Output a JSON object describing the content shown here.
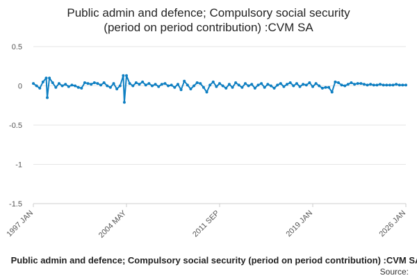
{
  "chart_data": {
    "type": "line",
    "title_lines": [
      "Public admin and defence; Compulsory social security",
      "(period on period contribution) :CVM SA"
    ],
    "xlabel": "",
    "ylabel": "",
    "x_ticks": [
      "1997 JAN",
      "2004 MAY",
      "2011 SEP",
      "2019 JAN",
      "2026 JAN"
    ],
    "x_range": [
      "1997-01",
      "2026-01"
    ],
    "y_ticks": [
      "0.5",
      "0",
      "-0.5",
      "-1",
      "-1.5"
    ],
    "ylim": [
      -1.5,
      0.5
    ],
    "grid": "horizontal",
    "legend_position": "bottom",
    "series": [
      {
        "name": "Public admin and defence; Compulsory social security (period on period contribution) :CVM SA",
        "color": "#0e7fc2",
        "points": [
          [
            "1997-01",
            0.03
          ],
          [
            "1997-04",
            0.0
          ],
          [
            "1997-07",
            -0.03
          ],
          [
            "1997-10",
            0.05
          ],
          [
            "1998-01",
            0.1
          ],
          [
            "1998-02",
            -0.15
          ],
          [
            "1998-04",
            0.1
          ],
          [
            "1998-07",
            0.04
          ],
          [
            "1998-10",
            -0.02
          ],
          [
            "1999-01",
            0.03
          ],
          [
            "1999-04",
            0.0
          ],
          [
            "1999-07",
            0.02
          ],
          [
            "1999-10",
            -0.01
          ],
          [
            "2000-01",
            0.01
          ],
          [
            "2000-04",
            0.0
          ],
          [
            "2000-07",
            -0.02
          ],
          [
            "2000-10",
            -0.03
          ],
          [
            "2001-01",
            0.04
          ],
          [
            "2001-04",
            0.03
          ],
          [
            "2001-07",
            0.02
          ],
          [
            "2001-10",
            0.04
          ],
          [
            "2002-01",
            0.03
          ],
          [
            "2002-04",
            0.01
          ],
          [
            "2002-07",
            0.04
          ],
          [
            "2002-10",
            0.0
          ],
          [
            "2003-01",
            -0.02
          ],
          [
            "2003-04",
            0.03
          ],
          [
            "2003-07",
            -0.04
          ],
          [
            "2003-10",
            0.0
          ],
          [
            "2004-01",
            0.13
          ],
          [
            "2004-02",
            -0.21
          ],
          [
            "2004-04",
            0.13
          ],
          [
            "2004-07",
            0.03
          ],
          [
            "2004-10",
            0.0
          ],
          [
            "2005-01",
            0.04
          ],
          [
            "2005-04",
            0.02
          ],
          [
            "2005-07",
            0.05
          ],
          [
            "2005-10",
            0.01
          ],
          [
            "2006-01",
            0.03
          ],
          [
            "2006-04",
            0.0
          ],
          [
            "2006-07",
            0.02
          ],
          [
            "2006-10",
            -0.01
          ],
          [
            "2007-01",
            0.02
          ],
          [
            "2007-04",
            0.03
          ],
          [
            "2007-07",
            0.0
          ],
          [
            "2007-10",
            0.01
          ],
          [
            "2008-01",
            -0.02
          ],
          [
            "2008-04",
            0.02
          ],
          [
            "2008-07",
            -0.05
          ],
          [
            "2008-10",
            0.06
          ],
          [
            "2009-01",
            0.01
          ],
          [
            "2009-04",
            -0.04
          ],
          [
            "2009-07",
            0.0
          ],
          [
            "2009-10",
            0.04
          ],
          [
            "2010-01",
            0.03
          ],
          [
            "2010-04",
            -0.02
          ],
          [
            "2010-07",
            -0.08
          ],
          [
            "2010-10",
            0.01
          ],
          [
            "2011-01",
            0.05
          ],
          [
            "2011-04",
            -0.01
          ],
          [
            "2011-07",
            0.03
          ],
          [
            "2011-10",
            0.0
          ],
          [
            "2012-01",
            -0.03
          ],
          [
            "2012-04",
            0.02
          ],
          [
            "2012-07",
            -0.02
          ],
          [
            "2012-10",
            0.04
          ],
          [
            "2013-01",
            0.01
          ],
          [
            "2013-04",
            -0.02
          ],
          [
            "2013-07",
            0.03
          ],
          [
            "2013-10",
            0.0
          ],
          [
            "2014-01",
            0.02
          ],
          [
            "2014-04",
            -0.03
          ],
          [
            "2014-07",
            0.01
          ],
          [
            "2014-10",
            0.03
          ],
          [
            "2015-01",
            -0.02
          ],
          [
            "2015-04",
            0.02
          ],
          [
            "2015-07",
            0.0
          ],
          [
            "2015-10",
            -0.03
          ],
          [
            "2016-01",
            0.01
          ],
          [
            "2016-04",
            0.03
          ],
          [
            "2016-07",
            -0.01
          ],
          [
            "2016-10",
            0.02
          ],
          [
            "2017-01",
            0.04
          ],
          [
            "2017-04",
            0.0
          ],
          [
            "2017-07",
            0.03
          ],
          [
            "2017-10",
            -0.01
          ],
          [
            "2018-01",
            0.02
          ],
          [
            "2018-04",
            0.01
          ],
          [
            "2018-07",
            0.04
          ],
          [
            "2018-10",
            -0.01
          ],
          [
            "2019-01",
            0.03
          ],
          [
            "2019-04",
            0.0
          ],
          [
            "2019-07",
            -0.03
          ],
          [
            "2019-10",
            -0.02
          ],
          [
            "2020-01",
            -0.02
          ],
          [
            "2020-04",
            -0.08
          ],
          [
            "2020-07",
            0.05
          ],
          [
            "2020-10",
            0.04
          ],
          [
            "2021-01",
            0.01
          ],
          [
            "2021-04",
            0.0
          ],
          [
            "2021-07",
            0.02
          ],
          [
            "2021-10",
            0.04
          ],
          [
            "2022-01",
            0.02
          ],
          [
            "2022-04",
            0.03
          ],
          [
            "2022-07",
            0.03
          ],
          [
            "2022-10",
            0.02
          ],
          [
            "2023-01",
            0.01
          ],
          [
            "2023-04",
            0.02
          ],
          [
            "2023-07",
            0.01
          ],
          [
            "2023-10",
            0.01
          ],
          [
            "2024-01",
            0.02
          ],
          [
            "2024-04",
            0.01
          ],
          [
            "2024-07",
            0.01
          ],
          [
            "2024-10",
            0.01
          ],
          [
            "2025-01",
            0.01
          ],
          [
            "2025-04",
            0.02
          ],
          [
            "2025-07",
            0.01
          ],
          [
            "2025-10",
            0.01
          ],
          [
            "2026-01",
            0.01
          ]
        ]
      }
    ],
    "source_label": "Source:"
  }
}
